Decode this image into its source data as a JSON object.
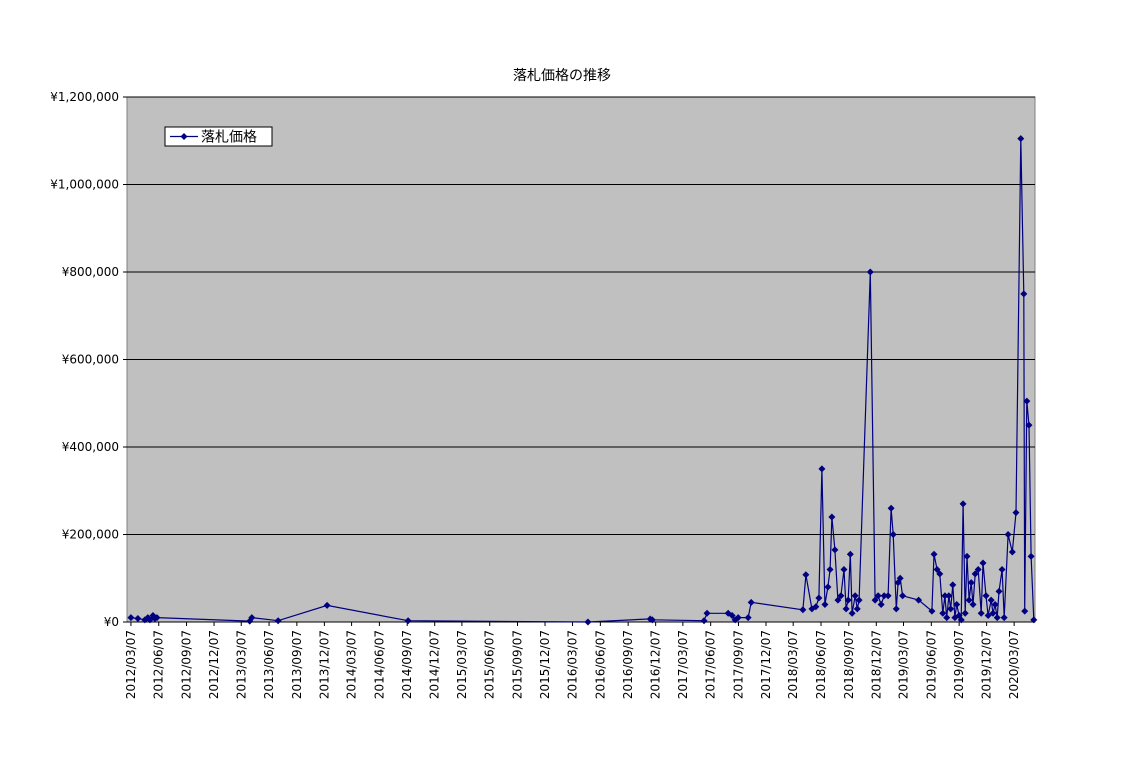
{
  "chart_data": {
    "type": "line",
    "title": "落札価格の推移",
    "x": [
      "2012/03/07",
      "2012/03/30",
      "2012/04/22",
      "2012/05/02",
      "2012/05/09",
      "2012/05/19",
      "2012/05/25",
      "2012/06/01",
      "2013/04/04",
      "2013/04/11",
      "2013/07/07",
      "2013/12/16",
      "2014/09/10",
      "2016/04/27",
      "2016/11/19",
      "2016/11/26",
      "2017/05/16",
      "2017/05/26",
      "2017/08/04",
      "2017/08/17",
      "2017/08/27",
      "2017/09/06",
      "2017/10/09",
      "2017/10/19",
      "2018/04/08",
      "2018/04/18",
      "2018/05/08",
      "2018/05/21",
      "2018/05/31",
      "2018/06/10",
      "2018/06/20",
      "2018/06/30",
      "2018/07/07",
      "2018/07/13",
      "2018/07/23",
      "2018/08/02",
      "2018/08/12",
      "2018/08/22",
      "2018/08/29",
      "2018/09/05",
      "2018/09/12",
      "2018/09/18",
      "2018/09/28",
      "2018/10/05",
      "2018/10/11",
      "2018/11/17",
      "2018/12/03",
      "2018/12/13",
      "2018/12/23",
      "2019/01/02",
      "2019/01/15",
      "2019/01/25",
      "2019/02/01",
      "2019/02/11",
      "2019/02/17",
      "2019/02/24",
      "2019/03/04",
      "2019/04/26",
      "2019/06/09",
      "2019/06/16",
      "2019/06/26",
      "2019/07/05",
      "2019/07/15",
      "2019/07/22",
      "2019/07/28",
      "2019/08/04",
      "2019/08/10",
      "2019/08/17",
      "2019/08/24",
      "2019/08/30",
      "2019/09/07",
      "2019/09/14",
      "2019/09/20",
      "2019/09/27",
      "2019/10/03",
      "2019/10/10",
      "2019/10/17",
      "2019/10/23",
      "2019/10/30",
      "2019/11/09",
      "2019/11/19",
      "2019/11/25",
      "2019/12/05",
      "2019/12/12",
      "2019/12/22",
      "2019/12/28",
      "2020/01/04",
      "2020/01/11",
      "2020/01/17",
      "2020/01/27",
      "2020/02/03",
      "2020/02/16",
      "2020/03/01",
      "2020/03/13",
      "2020/03/29",
      "2020/04/08",
      "2020/04/11",
      "2020/04/18",
      "2020/04/25",
      "2020/05/02",
      "2020/05/11"
    ],
    "series": [
      {
        "name": "落札価格",
        "color": "#000080",
        "values": [
          10000,
          8000,
          5000,
          10000,
          5000,
          15000,
          8000,
          10000,
          2000,
          10000,
          3000,
          38000,
          3000,
          0,
          7000,
          5000,
          3000,
          20000,
          20000,
          15000,
          5000,
          10000,
          10000,
          45000,
          28000,
          108000,
          30000,
          35000,
          55000,
          350000,
          40000,
          80000,
          120000,
          240000,
          165000,
          50000,
          60000,
          120000,
          30000,
          50000,
          155000,
          20000,
          60000,
          30000,
          50000,
          800000,
          50000,
          60000,
          40000,
          60000,
          60000,
          260000,
          200000,
          30000,
          90000,
          100000,
          60000,
          50000,
          25000,
          155000,
          120000,
          110000,
          20000,
          60000,
          10000,
          60000,
          30000,
          85000,
          10000,
          40000,
          15000,
          5000,
          270000,
          20000,
          150000,
          50000,
          90000,
          40000,
          110000,
          120000,
          20000,
          135000,
          60000,
          15000,
          50000,
          20000,
          40000,
          10000,
          70000,
          120000,
          10000,
          200000,
          160000,
          250000,
          1105000,
          750000,
          25000,
          505000,
          450000,
          150000,
          5000
        ]
      }
    ],
    "xlim": [
      "2012/02/23",
      "2020/05/15"
    ],
    "xticks": [
      "2012/03/07",
      "2012/06/07",
      "2012/09/07",
      "2012/12/07",
      "2013/03/07",
      "2013/06/07",
      "2013/09/07",
      "2013/12/07",
      "2014/03/07",
      "2014/06/07",
      "2014/09/07",
      "2014/12/07",
      "2015/03/07",
      "2015/06/07",
      "2015/09/07",
      "2015/12/07",
      "2016/03/07",
      "2016/06/07",
      "2016/09/07",
      "2016/12/07",
      "2017/03/07",
      "2017/06/07",
      "2017/09/07",
      "2017/12/07",
      "2018/03/07",
      "2018/06/07",
      "2018/09/07",
      "2018/12/07",
      "2019/03/07",
      "2019/06/07",
      "2019/09/07",
      "2019/12/07",
      "2020/03/07"
    ],
    "ylim": [
      0,
      1200000
    ],
    "yticks": [
      {
        "value": 0,
        "label": "¥0"
      },
      {
        "value": 200000,
        "label": "¥200,000"
      },
      {
        "value": 400000,
        "label": "¥400,000"
      },
      {
        "value": 600000,
        "label": "¥600,000"
      },
      {
        "value": 800000,
        "label": "¥800,000"
      },
      {
        "value": 1000000,
        "label": "¥1,000,000"
      },
      {
        "value": 1200000,
        "label": "¥1,200,000"
      }
    ],
    "grid": true,
    "legend": "upper left",
    "background": "#c0c0c0"
  }
}
